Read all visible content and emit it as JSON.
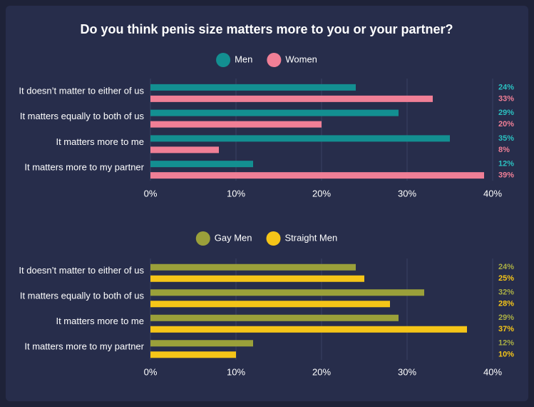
{
  "title": "Do you think penis size matters more to you or your partner?",
  "chart_data": [
    {
      "type": "hbar",
      "categories": [
        "It doesn’t matter to either of us",
        "It matters equally to both of us",
        "It matters more to me",
        "It matters more to my partner"
      ],
      "series": [
        {
          "name": "Men",
          "color": "#138f91",
          "label_color": "#2bc0c0",
          "values": [
            24,
            29,
            35,
            12
          ],
          "value_labels": [
            "24%",
            "29%",
            "35%",
            "12%"
          ]
        },
        {
          "name": "Women",
          "color": "#f07f96",
          "label_color": "#f07f96",
          "values": [
            33,
            20,
            8,
            39
          ],
          "value_labels": [
            "33%",
            "20%",
            "8%",
            "39%"
          ]
        }
      ],
      "xlim": [
        0,
        40
      ],
      "xticks": [
        {
          "value": 0,
          "label": "0%"
        },
        {
          "value": 10,
          "label": "10%"
        },
        {
          "value": 20,
          "label": "20%"
        },
        {
          "value": 30,
          "label": "30%"
        },
        {
          "value": 40,
          "label": "40%"
        }
      ],
      "grid": true
    },
    {
      "type": "hbar",
      "categories": [
        "It doesn’t matter to either of us",
        "It matters equally to both of us",
        "It matters more to me",
        "It matters more to my partner"
      ],
      "series": [
        {
          "name": "Gay Men",
          "color": "#9aa03a",
          "label_color": "#a9ae45",
          "values": [
            24,
            32,
            29,
            12
          ],
          "value_labels": [
            "24%",
            "32%",
            "29%",
            "12%"
          ]
        },
        {
          "name": "Straight Men",
          "color": "#f5c518",
          "label_color": "#f5c518",
          "values": [
            25,
            28,
            37,
            10
          ],
          "value_labels": [
            "25%",
            "28%",
            "37%",
            "10%"
          ]
        }
      ],
      "xlim": [
        0,
        40
      ],
      "xticks": [
        {
          "value": 0,
          "label": "0%"
        },
        {
          "value": 10,
          "label": "10%"
        },
        {
          "value": 20,
          "label": "20%"
        },
        {
          "value": 30,
          "label": "30%"
        },
        {
          "value": 40,
          "label": "40%"
        }
      ],
      "grid": true
    }
  ]
}
